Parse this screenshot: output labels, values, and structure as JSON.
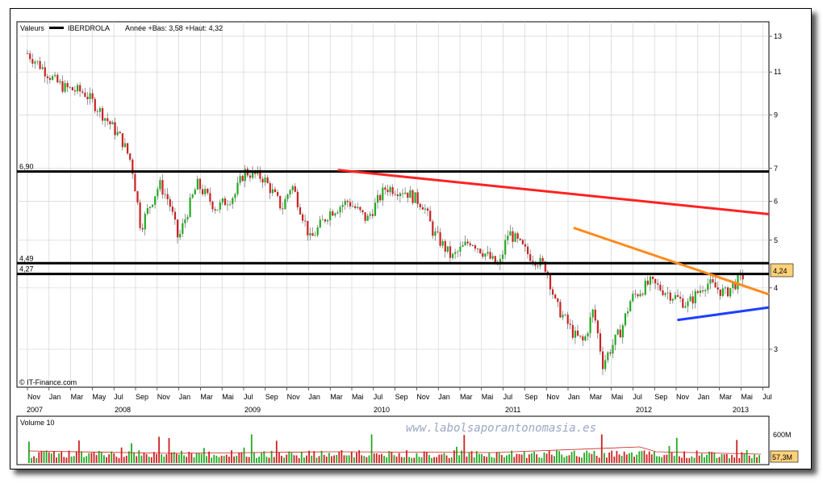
{
  "header": {
    "section_label": "Valeurs",
    "series_name": "IBERDROLA",
    "range_text": "Année +Bas: 3,58 +Haut: 4,32"
  },
  "source_label": "© IT-Finance.com",
  "watermark": "www.labolsaporantonomasia.es",
  "volume_panel": {
    "label": "Volume 10",
    "axis_label": "600M",
    "last_value": "57,3M"
  },
  "last_price_badge": "4,24",
  "colors": {
    "up_candle": "#22aa22",
    "down_candle": "#cc2222",
    "resistance_line": "#ff2222",
    "downtrend_line": "#ff8a1e",
    "support_line": "#1f3fff",
    "horizontal_level": "#000000",
    "badge": "#ffd27a"
  },
  "chart_data": {
    "type": "candlestick",
    "scale": "log",
    "y_ticks": [
      "13",
      "11",
      "9",
      "7",
      "6",
      "5",
      "4",
      "3"
    ],
    "x_month_labels": [
      "Nov",
      "Jan",
      "Mar",
      "May",
      "Jul",
      "Sep",
      "Nov",
      "Jan",
      "Mar",
      "Mai",
      "Jul",
      "Sep",
      "Nov",
      "Jan",
      "Mar",
      "Mai",
      "Jul",
      "Sep",
      "Nov",
      "Jan",
      "Mar",
      "Mai",
      "Jul",
      "Sep",
      "Nov",
      "Jan",
      "Mar",
      "Mai",
      "Jul",
      "Sep",
      "Nov",
      "Jan",
      "Mar",
      "Mai",
      "Jul",
      "Sep",
      "Nov",
      "Jan",
      "Mar",
      "Mai"
    ],
    "x_year_labels": [
      "2007",
      "2008",
      "2009",
      "2010",
      "2011",
      "2012",
      "2013"
    ],
    "horizontal_levels": [
      {
        "label": "6,90",
        "value": 6.9
      },
      {
        "label": "4,49",
        "value": 4.49
      },
      {
        "label": "4,27",
        "value": 4.27
      }
    ],
    "trend_lines": [
      {
        "name": "resistance",
        "from": [
          "2009-08",
          6.95
        ],
        "to": [
          "2013-06",
          5.65
        ]
      },
      {
        "name": "downtrend",
        "from": [
          "2011-09",
          5.3
        ],
        "to": [
          "2013-06",
          3.88
        ]
      },
      {
        "name": "support",
        "from": [
          "2012-08",
          3.44
        ],
        "to": [
          "2013-06",
          3.65
        ]
      }
    ],
    "price_path": [
      [
        "2006-11",
        12.0
      ],
      [
        "2007-01",
        11.0
      ],
      [
        "2007-02",
        10.5
      ],
      [
        "2007-03",
        10.2
      ],
      [
        "2007-05",
        10.0
      ],
      [
        "2007-07",
        9.0
      ],
      [
        "2007-09",
        8.0
      ],
      [
        "2007-10",
        7.2
      ],
      [
        "2007-11",
        5.3
      ],
      [
        "2008-01",
        6.5
      ],
      [
        "2008-02",
        6.0
      ],
      [
        "2008-03",
        5.0
      ],
      [
        "2008-05",
        6.5
      ],
      [
        "2008-07",
        5.8
      ],
      [
        "2008-09",
        6.2
      ],
      [
        "2008-10",
        6.9
      ],
      [
        "2008-12",
        6.7
      ],
      [
        "2009-02",
        5.8
      ],
      [
        "2009-03",
        6.5
      ],
      [
        "2009-05",
        5.0
      ],
      [
        "2009-07",
        5.7
      ],
      [
        "2009-09",
        6.0
      ],
      [
        "2009-11",
        5.5
      ],
      [
        "2010-01",
        6.4
      ],
      [
        "2010-03",
        6.3
      ],
      [
        "2010-05",
        5.9
      ],
      [
        "2010-06",
        5.2
      ],
      [
        "2010-08",
        4.6
      ],
      [
        "2010-10",
        5.0
      ],
      [
        "2010-12",
        4.6
      ],
      [
        "2011-01",
        4.4
      ],
      [
        "2011-02",
        5.2
      ],
      [
        "2011-04",
        4.7
      ],
      [
        "2011-06",
        4.4
      ],
      [
        "2011-07",
        3.7
      ],
      [
        "2011-09",
        3.2
      ],
      [
        "2011-10",
        3.1
      ],
      [
        "2011-11",
        3.6
      ],
      [
        "2011-12",
        2.8
      ],
      [
        "2012-02",
        3.3
      ],
      [
        "2012-03",
        3.8
      ],
      [
        "2012-05",
        4.1
      ],
      [
        "2012-07",
        3.9
      ],
      [
        "2012-09",
        3.7
      ],
      [
        "2012-11",
        4.1
      ],
      [
        "2013-01",
        3.9
      ],
      [
        "2013-03",
        4.25
      ]
    ],
    "volume_scale_max": 600
  }
}
